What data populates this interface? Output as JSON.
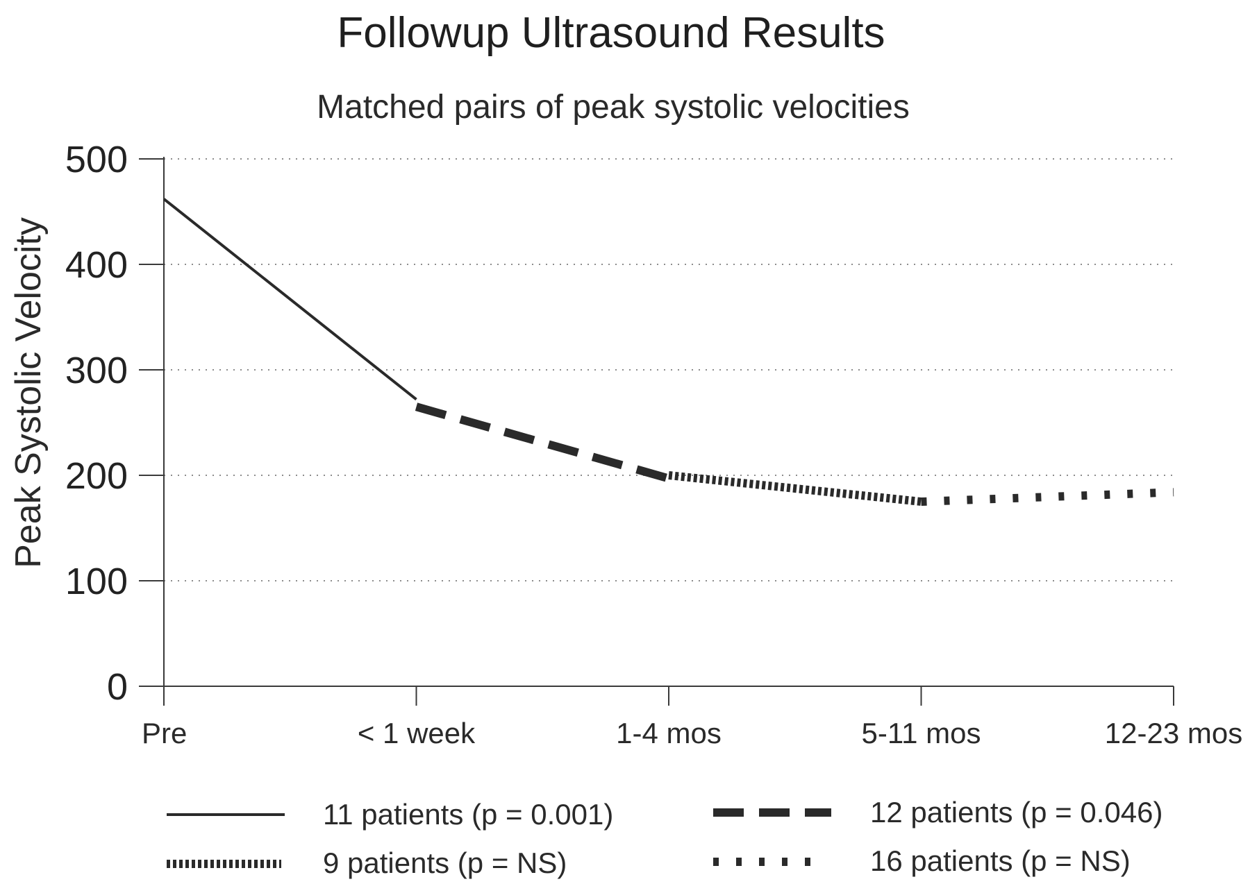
{
  "chart_data": {
    "type": "line",
    "title": "Followup Ultrasound Results",
    "subtitle": "Matched pairs of peak systolic velocities",
    "ylabel": "Peak Systolic Velocity",
    "xlabel": "",
    "categories": [
      "Pre",
      "< 1 week",
      "1-4 mos",
      "5-11 mos",
      "12-23 mos"
    ],
    "ylim": [
      0,
      500
    ],
    "yticks": [
      0,
      100,
      200,
      300,
      400,
      500
    ],
    "grid": "horizontal-dotted",
    "legend_position": "bottom",
    "series": [
      {
        "name": "11 patients (p = 0.001)",
        "style": "solid",
        "points": [
          {
            "x": "Pre",
            "y": 462
          },
          {
            "x": "< 1 week",
            "y": 272
          }
        ]
      },
      {
        "name": "12 patients (p = 0.046)",
        "style": "long-dash",
        "points": [
          {
            "x": "< 1 week",
            "y": 265
          },
          {
            "x": "1-4 mos",
            "y": 197
          }
        ]
      },
      {
        "name": "9 patients (p = NS)",
        "style": "dense-dot",
        "points": [
          {
            "x": "1-4 mos",
            "y": 200
          },
          {
            "x": "5-11 mos",
            "y": 175
          }
        ]
      },
      {
        "name": "16 patients (p = NS)",
        "style": "sparse-dot",
        "points": [
          {
            "x": "5-11 mos",
            "y": 175
          },
          {
            "x": "12-23 mos",
            "y": 184
          }
        ]
      }
    ],
    "colors": {
      "line": "#2a2a2a",
      "axis": "#3a3a3a",
      "grid": "#8c8c8c",
      "text": "#262626"
    }
  }
}
